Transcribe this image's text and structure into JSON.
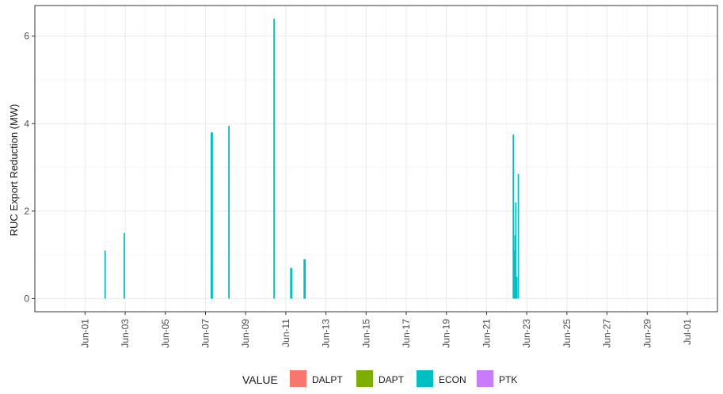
{
  "chart_data": {
    "type": "bar",
    "ylabel": "RUC Export Reduction (MW)",
    "xlim": [
      "2023-05-29T12:00",
      "2023-07-02T12:00"
    ],
    "ylim": [
      -0.3,
      6.7
    ],
    "y_ticks": [
      0,
      2,
      4,
      6
    ],
    "x_ticks": [
      {
        "date": "2023-06-01",
        "label": "Jun-01"
      },
      {
        "date": "2023-06-03",
        "label": "Jun-03"
      },
      {
        "date": "2023-06-05",
        "label": "Jun-05"
      },
      {
        "date": "2023-06-07",
        "label": "Jun-07"
      },
      {
        "date": "2023-06-09",
        "label": "Jun-09"
      },
      {
        "date": "2023-06-11",
        "label": "Jun-11"
      },
      {
        "date": "2023-06-13",
        "label": "Jun-13"
      },
      {
        "date": "2023-06-15",
        "label": "Jun-15"
      },
      {
        "date": "2023-06-17",
        "label": "Jun-17"
      },
      {
        "date": "2023-06-19",
        "label": "Jun-19"
      },
      {
        "date": "2023-06-21",
        "label": "Jun-21"
      },
      {
        "date": "2023-06-23",
        "label": "Jun-23"
      },
      {
        "date": "2023-06-25",
        "label": "Jun-25"
      },
      {
        "date": "2023-06-27",
        "label": "Jun-27"
      },
      {
        "date": "2023-06-29",
        "label": "Jun-29"
      },
      {
        "date": "2023-07-01",
        "label": "Jul-01"
      }
    ],
    "grid": true,
    "legend": {
      "title": "VALUE",
      "position": "bottom",
      "entries": [
        {
          "label": "DALPT",
          "color": "#F8766D"
        },
        {
          "label": "DAPT",
          "color": "#7CAE00"
        },
        {
          "label": "ECON",
          "color": "#00BFC4"
        },
        {
          "label": "PTK",
          "color": "#C77CFF"
        }
      ]
    },
    "series": [
      {
        "name": "ECON",
        "color": "#00BFC4",
        "points": [
          {
            "x": "2023-06-02T00:00",
            "y": 1.1
          },
          {
            "x": "2023-06-02T23:00",
            "y": 1.5
          },
          {
            "x": "2023-06-07T07:00",
            "y": 3.8
          },
          {
            "x": "2023-06-07T08:00",
            "y": 3.8
          },
          {
            "x": "2023-06-08T04:00",
            "y": 3.95
          },
          {
            "x": "2023-06-10T10:00",
            "y": 6.4
          },
          {
            "x": "2023-06-11T06:00",
            "y": 0.7
          },
          {
            "x": "2023-06-11T07:00",
            "y": 0.7
          },
          {
            "x": "2023-06-11T22:00",
            "y": 0.9
          },
          {
            "x": "2023-06-11T23:00",
            "y": 0.9
          },
          {
            "x": "2023-06-22T08:00",
            "y": 3.75
          },
          {
            "x": "2023-06-22T09:00",
            "y": 1.1
          },
          {
            "x": "2023-06-22T10:00",
            "y": 1.45
          },
          {
            "x": "2023-06-22T11:00",
            "y": 2.2
          },
          {
            "x": "2023-06-22T12:00",
            "y": 0.5
          },
          {
            "x": "2023-06-22T14:00",
            "y": 2.85
          }
        ]
      }
    ]
  }
}
